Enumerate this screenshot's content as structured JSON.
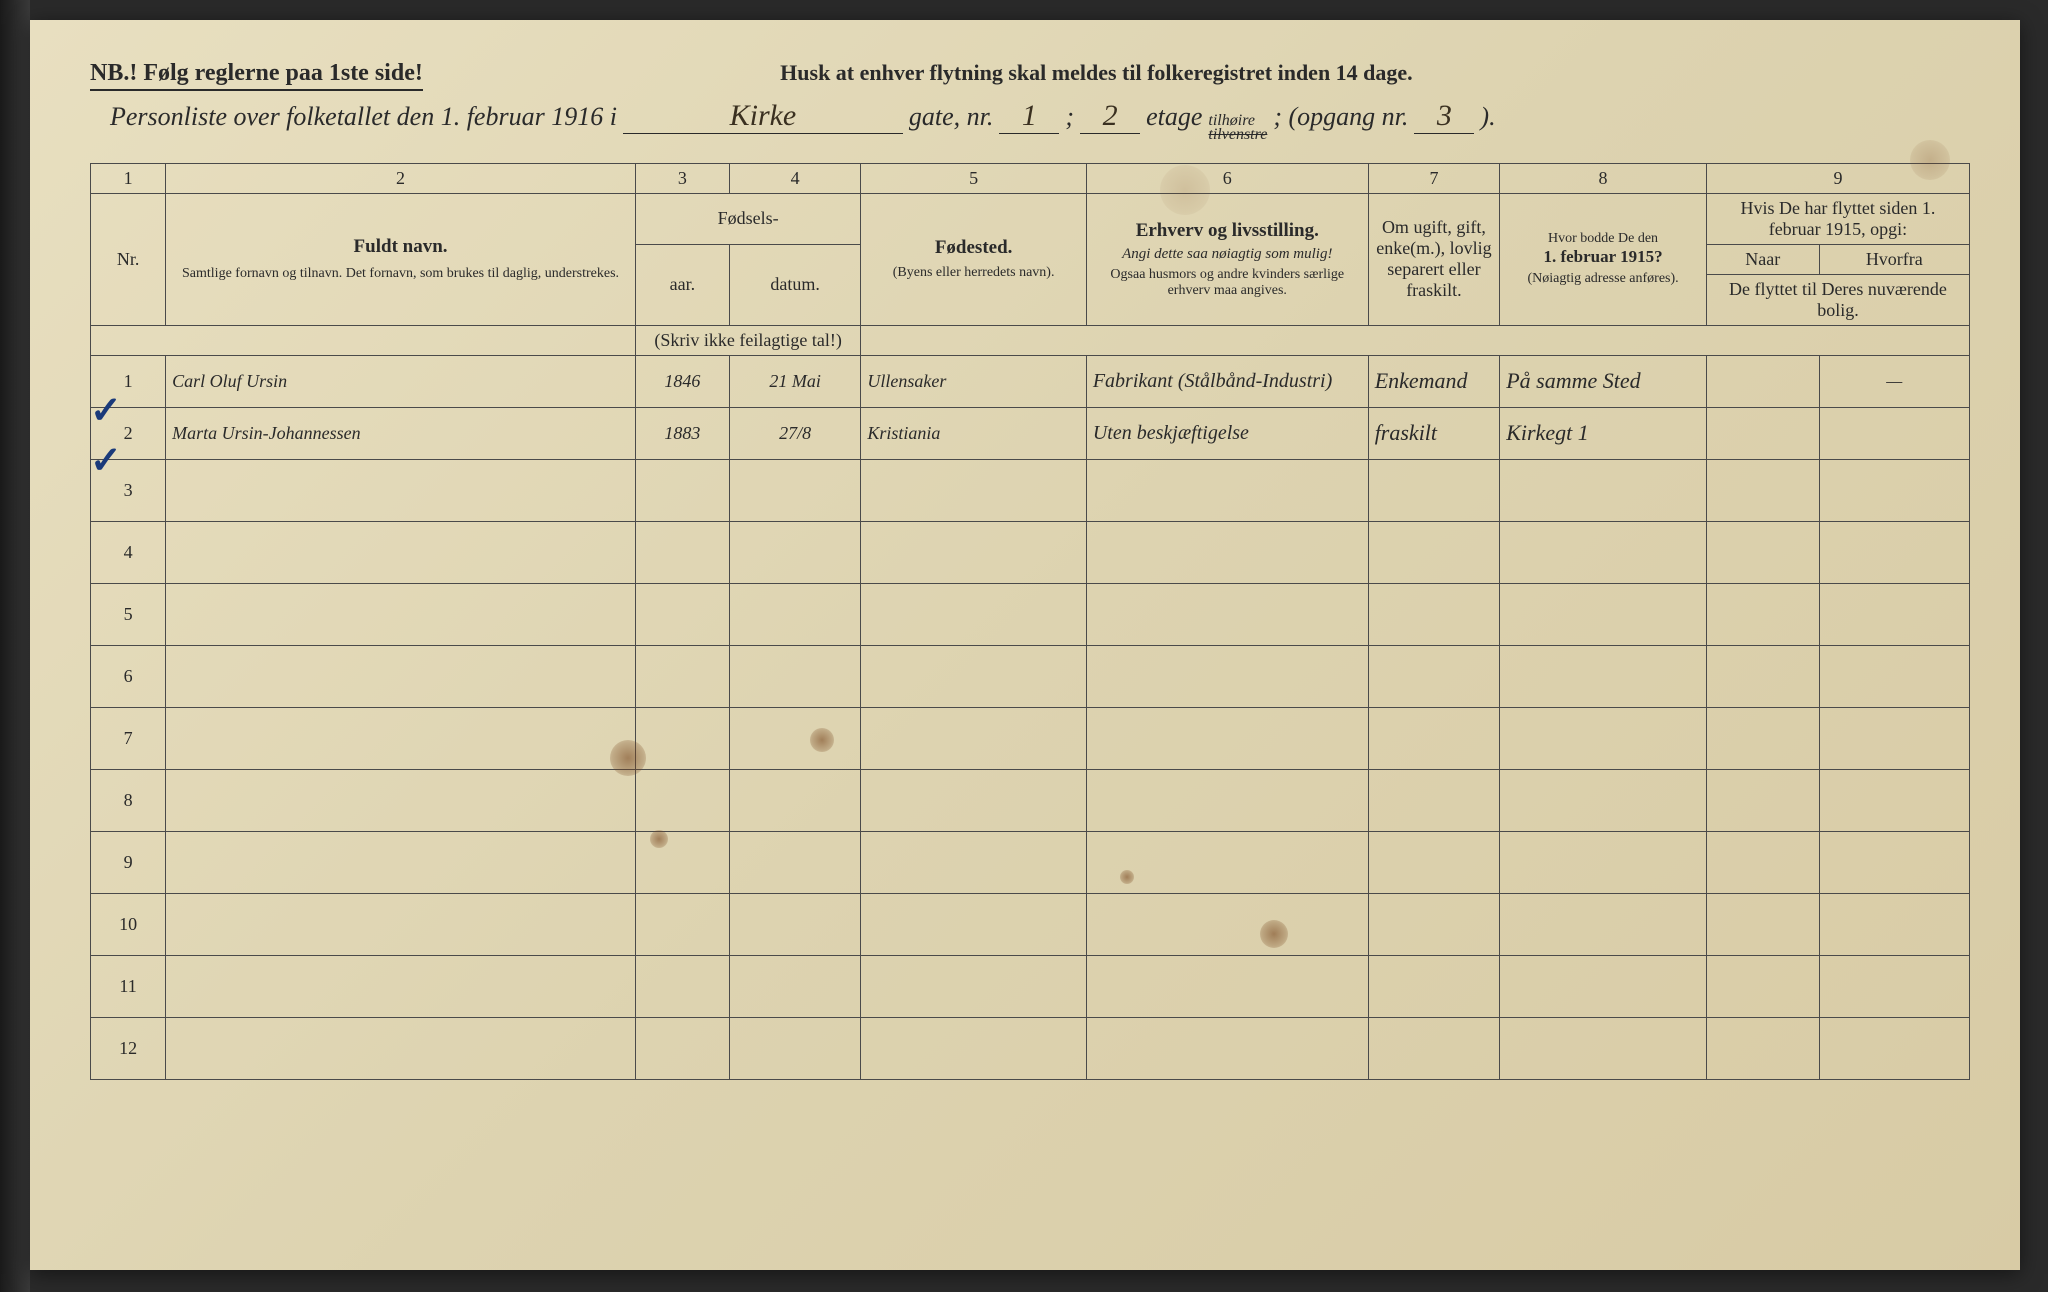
{
  "header": {
    "nb_text": "NB.! Følg reglerne paa 1ste side!",
    "husk_text": "Husk at enhver flytning skal meldes til folkeregistret inden 14 dage.",
    "personliste_prefix": "Personliste over folketallet den 1. februar 1916 i",
    "street": "Kirke",
    "gate_label": "gate, nr.",
    "gate_nr": "1",
    "semicolon": ";",
    "etage": "2",
    "etage_label": "etage",
    "tilhoire": "tilhøire",
    "tilvenstre": "tilvenstre",
    "opgang_label": "; (opgang nr.",
    "opgang_nr": "3",
    "closing": ")."
  },
  "columns": {
    "c1": "1",
    "c2": "2",
    "c3": "3",
    "c4": "4",
    "c5": "5",
    "c6": "6",
    "c7": "7",
    "c8": "8",
    "c9": "9",
    "nr": "Nr.",
    "fuldt_navn": "Fuldt navn.",
    "fuldt_sub": "Samtlige fornavn og tilnavn. Det fornavn, som brukes til daglig, understrekes.",
    "fodsels": "Fødsels-",
    "aar": "aar.",
    "datum": "datum.",
    "skriv_ikke": "(Skriv ikke feilagtige tal!)",
    "fodested": "Fødested.",
    "fodested_sub": "(Byens eller herredets navn).",
    "erhverv": "Erhverv og livsstilling.",
    "erhverv_sub1": "Angi dette saa nøiagtig som mulig!",
    "erhverv_sub2": "Ogsaa husmors og andre kvinders særlige erhverv maa angives.",
    "om_ugift": "Om ugift, gift, enke(m.), lovlig separert eller fraskilt.",
    "hvor_bodde": "Hvor bodde De den",
    "feb1915": "1. februar 1915?",
    "noiagtig": "(Nøiagtig adresse anføres).",
    "hvis_flyttet": "Hvis De har flyttet siden 1. februar 1915, opgi:",
    "naar": "Naar",
    "hvorfra": "Hvorfra",
    "de_flyttet": "De flyttet til Deres nuværende bolig."
  },
  "rows": [
    {
      "nr": "1",
      "navn": "Carl Oluf Ursin",
      "aar": "1846",
      "datum": "21 Mai",
      "fodested": "Ullensaker",
      "erhverv": "Fabrikant (Stålbånd-Industri)",
      "status": "Enkemand",
      "bodde": "På samme Sted",
      "naar": "",
      "hvorfra": "—"
    },
    {
      "nr": "2",
      "navn": "Marta Ursin-Johannessen",
      "aar": "1883",
      "datum": "27/8",
      "fodested": "Kristiania",
      "erhverv": "Uten beskjæftigelse",
      "status": "fraskilt",
      "bodde": "Kirkegt 1",
      "naar": "",
      "hvorfra": ""
    }
  ],
  "empty_rows": [
    "3",
    "4",
    "5",
    "6",
    "7",
    "8",
    "9",
    "10",
    "11",
    "12"
  ],
  "colors": {
    "paper": "#e0d5b5",
    "ink": "#2a2a2a",
    "handwriting": "#2a2418",
    "checkmark": "#1a3a7a",
    "stain": "#785030"
  }
}
